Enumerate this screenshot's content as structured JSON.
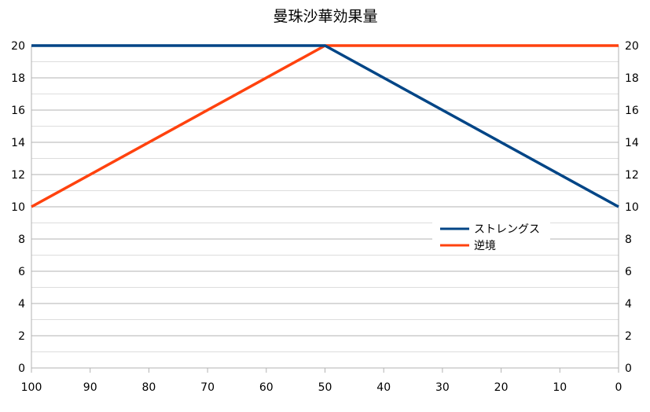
{
  "chart_data": {
    "type": "line",
    "title": "曼珠沙華効果量",
    "x": [
      100,
      50,
      0
    ],
    "x_ticks": [
      100,
      90,
      80,
      70,
      60,
      50,
      40,
      30,
      20,
      10,
      0
    ],
    "xlim": [
      100,
      0
    ],
    "ylim": [
      0,
      20
    ],
    "y_ticks": [
      0,
      2,
      4,
      6,
      8,
      10,
      12,
      14,
      16,
      18,
      20
    ],
    "secondary_y_axis": true,
    "grid": true,
    "legend_position": "right",
    "series": [
      {
        "name": "ストレングス",
        "color": "#004586",
        "values": [
          20,
          20,
          10
        ]
      },
      {
        "name": "逆境",
        "color": "#ff420e",
        "values": [
          10,
          20,
          20
        ]
      }
    ]
  }
}
